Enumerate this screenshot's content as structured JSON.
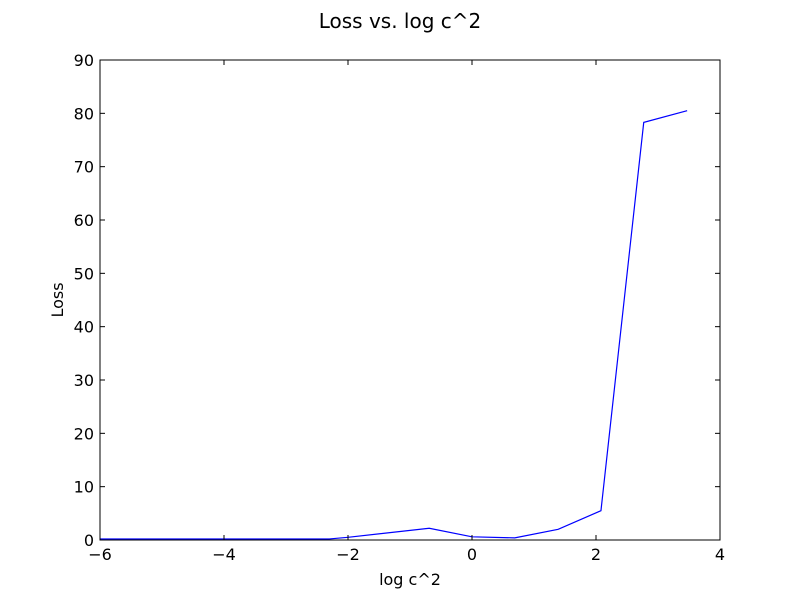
{
  "chart_data": {
    "type": "line",
    "title": "Loss vs. log c^2",
    "xlabel": "log c^2",
    "ylabel": "Loss",
    "xlim": [
      -6,
      4
    ],
    "ylim": [
      0,
      90
    ],
    "xticks": [
      -6,
      -4,
      -2,
      0,
      2,
      4
    ],
    "xtick_labels": [
      "−6",
      "−4",
      "−2",
      "0",
      "2",
      "4"
    ],
    "yticks": [
      0,
      10,
      20,
      30,
      40,
      50,
      60,
      70,
      80,
      90
    ],
    "ytick_labels": [
      "0",
      "10",
      "20",
      "30",
      "40",
      "50",
      "60",
      "70",
      "80",
      "90"
    ],
    "grid": false,
    "legend": "none",
    "series": [
      {
        "color": "#0000ff",
        "x": [
          -6.0,
          -4.6,
          -2.3,
          -2.0,
          -0.69,
          0.0,
          0.69,
          1.39,
          2.08,
          2.77,
          3.47
        ],
        "y": [
          0.2,
          0.2,
          0.2,
          0.5,
          2.2,
          0.6,
          0.4,
          2.0,
          5.5,
          78.3,
          80.5
        ]
      }
    ]
  }
}
